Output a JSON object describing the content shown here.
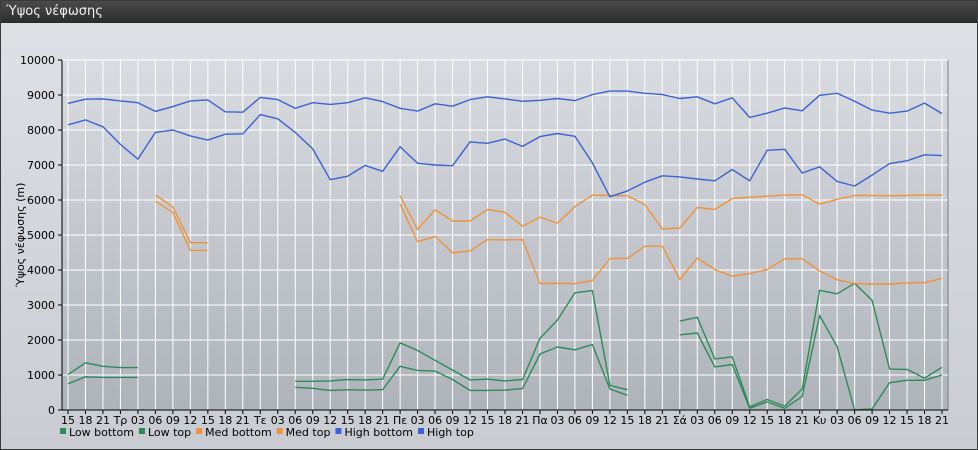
{
  "window": {
    "title": "Ύψος νέφωσης"
  },
  "colors": {
    "low": "#2e8b57",
    "med": "#f0923a",
    "high": "#3a62d4",
    "grid": "#ffffff",
    "axis": "#000000"
  },
  "chart_data": {
    "type": "line",
    "title": "",
    "xlabel": "",
    "ylabel": "Ύψος νέφωσης (m)",
    "ylim": [
      0,
      10000
    ],
    "yticks": [
      0,
      1000,
      2000,
      3000,
      4000,
      5000,
      6000,
      7000,
      8000,
      9000,
      10000
    ],
    "grid": true,
    "legend_position": "bottom-left",
    "categories": [
      "15",
      "18",
      "21",
      "Τρ",
      "03",
      "06",
      "09",
      "12",
      "15",
      "18",
      "21",
      "Τε",
      "03",
      "06",
      "09",
      "12",
      "15",
      "18",
      "21",
      "Πε",
      "03",
      "06",
      "09",
      "12",
      "15",
      "18",
      "21",
      "Πα",
      "03",
      "06",
      "09",
      "12",
      "15",
      "18",
      "21",
      "Σά",
      "03",
      "06",
      "09",
      "12",
      "15",
      "18",
      "21",
      "Κυ",
      "03",
      "06",
      "09",
      "12",
      "15",
      "18",
      "21"
    ],
    "series": [
      {
        "name": "Low bottom",
        "color_key": "low",
        "values": [
          750,
          950,
          930,
          930,
          930,
          null,
          null,
          null,
          null,
          null,
          null,
          null,
          null,
          650,
          620,
          560,
          580,
          570,
          580,
          1250,
          1130,
          1110,
          870,
          560,
          560,
          570,
          610,
          1600,
          1800,
          1720,
          1870,
          600,
          420,
          null,
          null,
          2150,
          2200,
          1230,
          1300,
          50,
          230,
          50,
          390,
          2700,
          1810,
          0,
          30,
          780,
          850,
          850,
          1000
        ]
      },
      {
        "name": "Low top",
        "color_key": "low",
        "values": [
          1010,
          1350,
          1250,
          1210,
          1210,
          null,
          null,
          null,
          null,
          null,
          null,
          null,
          null,
          820,
          820,
          830,
          870,
          860,
          880,
          1920,
          1700,
          1420,
          1140,
          860,
          880,
          830,
          870,
          2050,
          2570,
          3350,
          3410,
          700,
          580,
          null,
          null,
          2540,
          2650,
          1460,
          1520,
          90,
          300,
          110,
          600,
          3420,
          3320,
          3620,
          3130,
          1170,
          1160,
          910,
          1220
        ]
      },
      {
        "name": "Med bottom",
        "color_key": "med",
        "values": [
          null,
          null,
          null,
          null,
          null,
          5970,
          5640,
          4560,
          4560,
          null,
          null,
          null,
          null,
          null,
          null,
          null,
          null,
          null,
          null,
          5880,
          4810,
          4960,
          4490,
          4540,
          4870,
          4860,
          4870,
          3610,
          3620,
          3610,
          3700,
          4330,
          4330,
          4680,
          4680,
          3730,
          4340,
          4010,
          3820,
          3900,
          4010,
          4320,
          4320,
          3970,
          3720,
          3610,
          3600,
          3600,
          3630,
          3640,
          3760
        ]
      },
      {
        "name": "Med top",
        "color_key": "med",
        "values": [
          null,
          null,
          null,
          null,
          null,
          6140,
          5800,
          4780,
          4780,
          null,
          null,
          null,
          null,
          null,
          null,
          null,
          null,
          null,
          null,
          6120,
          5160,
          5720,
          5400,
          5400,
          5730,
          5650,
          5250,
          5510,
          5340,
          5810,
          6140,
          6130,
          6120,
          5870,
          5170,
          5200,
          5790,
          5730,
          6040,
          6080,
          6110,
          6140,
          6150,
          5880,
          6020,
          6130,
          6130,
          6120,
          6130,
          6140,
          6140
        ]
      },
      {
        "name": "High bottom",
        "color_key": "high",
        "values": [
          8150,
          8290,
          8090,
          7590,
          7170,
          7930,
          8000,
          7830,
          7710,
          7880,
          7890,
          8440,
          8320,
          7930,
          7460,
          6580,
          6680,
          6990,
          6820,
          7520,
          7050,
          7000,
          6980,
          7660,
          7620,
          7740,
          7530,
          7810,
          7900,
          7820,
          7060,
          6090,
          6260,
          6510,
          6690,
          6660,
          6600,
          6550,
          6870,
          6550,
          7420,
          7450,
          6770,
          6950,
          6530,
          6400,
          6710,
          7040,
          7120,
          7290,
          7270
        ]
      },
      {
        "name": "High top",
        "color_key": "high",
        "values": [
          8760,
          8880,
          8890,
          8830,
          8780,
          8530,
          8670,
          8830,
          8860,
          8520,
          8510,
          8930,
          8870,
          8620,
          8780,
          8730,
          8780,
          8920,
          8810,
          8620,
          8540,
          8750,
          8680,
          8870,
          8950,
          8890,
          8820,
          8850,
          8900,
          8840,
          9010,
          9110,
          9110,
          9050,
          9010,
          8900,
          8950,
          8750,
          8920,
          8360,
          8480,
          8630,
          8550,
          8990,
          9050,
          8820,
          8570,
          8480,
          8540,
          8770,
          8470
        ]
      }
    ]
  }
}
